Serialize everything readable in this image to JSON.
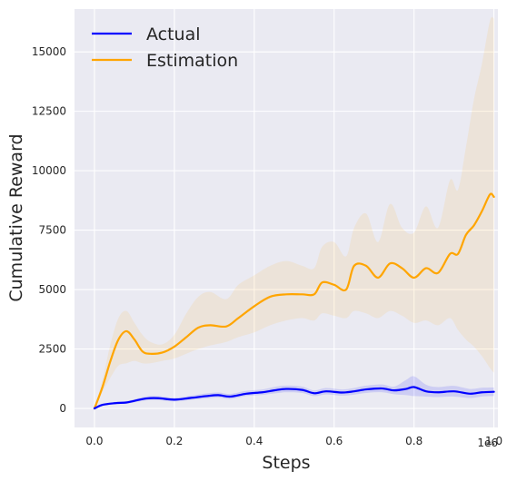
{
  "chart_data": {
    "type": "line",
    "xlabel": "Steps",
    "ylabel": "Cumulative Reward",
    "x_offset_label": "1e6",
    "xlim": [
      -0.05,
      1.01
    ],
    "ylim": [
      -800,
      16800
    ],
    "x_ticks": [
      0.0,
      0.2,
      0.4,
      0.6,
      0.8,
      1.0
    ],
    "x_tick_labels": [
      "0.0",
      "0.2",
      "0.4",
      "0.6",
      "0.8",
      "1.0"
    ],
    "y_ticks": [
      0,
      2500,
      5000,
      7500,
      10000,
      12500,
      15000
    ],
    "y_tick_labels": [
      "0",
      "2500",
      "5000",
      "7500",
      "10000",
      "12500",
      "15000"
    ],
    "grid": true,
    "background": "#eaeaf2",
    "legend_position": "top-left",
    "series": [
      {
        "name": "Actual",
        "color": "#0000ff",
        "band_color": "#0000ff",
        "x": [
          0.0,
          0.02,
          0.05,
          0.08,
          0.1,
          0.13,
          0.16,
          0.2,
          0.24,
          0.28,
          0.31,
          0.34,
          0.38,
          0.42,
          0.45,
          0.48,
          0.52,
          0.55,
          0.58,
          0.62,
          0.65,
          0.68,
          0.72,
          0.75,
          0.78,
          0.8,
          0.83,
          0.86,
          0.9,
          0.94,
          0.97,
          1.0
        ],
        "y": [
          0,
          150,
          220,
          250,
          320,
          420,
          430,
          370,
          440,
          520,
          560,
          500,
          620,
          680,
          760,
          820,
          780,
          640,
          720,
          670,
          720,
          800,
          840,
          760,
          820,
          900,
          720,
          680,
          720,
          620,
          680,
          700
        ],
        "lower": [
          0,
          120,
          180,
          200,
          260,
          340,
          350,
          300,
          360,
          420,
          460,
          400,
          520,
          570,
          630,
          680,
          650,
          520,
          590,
          540,
          580,
          650,
          680,
          600,
          560,
          520,
          500,
          480,
          500,
          440,
          500,
          520
        ],
        "upper": [
          0,
          190,
          270,
          310,
          390,
          510,
          520,
          450,
          530,
          630,
          670,
          610,
          740,
          800,
          900,
          960,
          920,
          760,
          860,
          800,
          860,
          960,
          1010,
          920,
          1200,
          1350,
          1000,
          900,
          950,
          820,
          870,
          880
        ]
      },
      {
        "name": "Estimation",
        "color": "#ffa500",
        "band_color": "#ffa500",
        "x": [
          0.0,
          0.02,
          0.04,
          0.06,
          0.08,
          0.1,
          0.12,
          0.14,
          0.17,
          0.2,
          0.23,
          0.26,
          0.29,
          0.33,
          0.36,
          0.4,
          0.44,
          0.48,
          0.52,
          0.55,
          0.57,
          0.6,
          0.63,
          0.65,
          0.68,
          0.71,
          0.74,
          0.77,
          0.8,
          0.83,
          0.86,
          0.89,
          0.91,
          0.93,
          0.95,
          0.97,
          0.99,
          1.0
        ],
        "y": [
          0,
          900,
          2000,
          2900,
          3250,
          2900,
          2400,
          2300,
          2350,
          2600,
          3000,
          3400,
          3500,
          3450,
          3800,
          4300,
          4700,
          4800,
          4800,
          4800,
          5300,
          5200,
          5000,
          6000,
          6000,
          5500,
          6100,
          5900,
          5500,
          5900,
          5700,
          6500,
          6500,
          7300,
          7700,
          8300,
          9000,
          8900
        ],
        "lower": [
          0,
          700,
          1300,
          1800,
          1900,
          2000,
          1900,
          1900,
          2000,
          2100,
          2300,
          2500,
          2650,
          2800,
          3000,
          3200,
          3500,
          3700,
          3800,
          3700,
          4000,
          3900,
          3800,
          4100,
          4000,
          3800,
          4100,
          3900,
          3600,
          3700,
          3500,
          3800,
          3300,
          2900,
          2600,
          2200,
          1700,
          1500
        ],
        "upper": [
          0,
          1200,
          2700,
          3800,
          4100,
          3600,
          3100,
          2800,
          2700,
          3100,
          4000,
          4700,
          4900,
          4600,
          5200,
          5600,
          6000,
          6200,
          6000,
          5900,
          6800,
          7000,
          6400,
          7600,
          8200,
          7000,
          8600,
          7600,
          7400,
          8500,
          7600,
          9600,
          9200,
          11000,
          13000,
          14500,
          16300,
          16400
        ]
      }
    ]
  }
}
